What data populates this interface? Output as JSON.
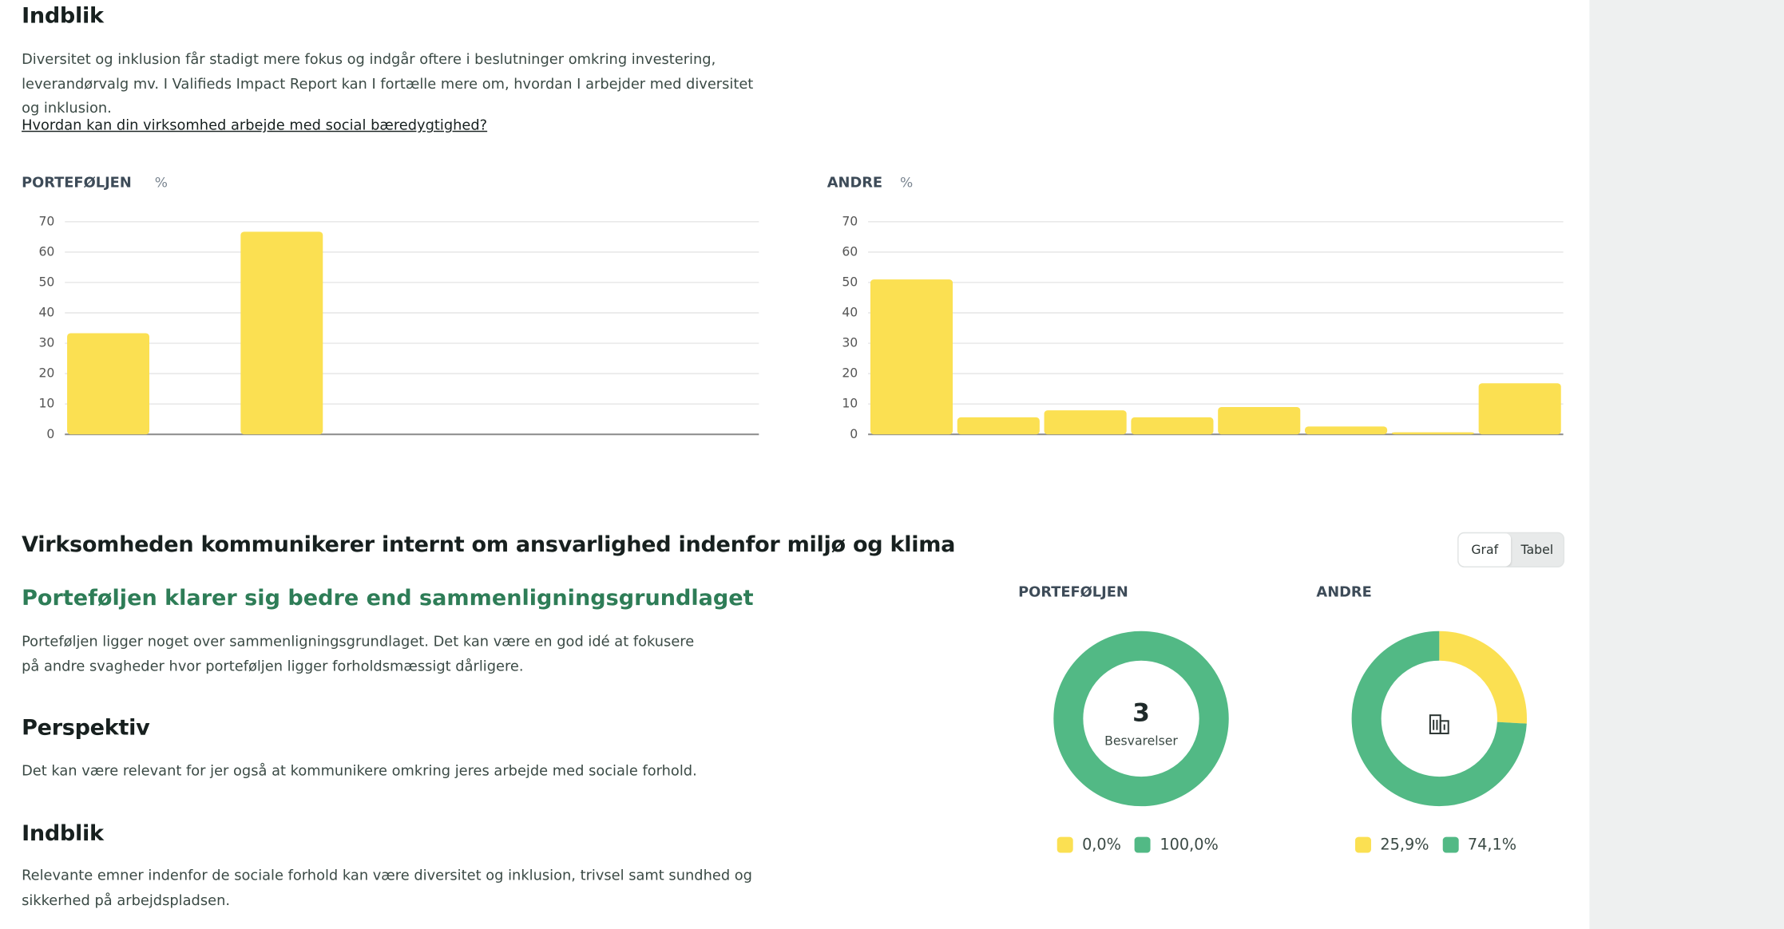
{
  "header": {
    "title": "Indblik",
    "text": "Diversitet og inklusion får stadigt mere fokus og indgår oftere i beslutninger omkring investering, leverandørvalg mv. I Valifieds Impact Report kan I fortælle mere om, hvordan I arbejder med diversitet og inklusion.",
    "link": "Hvordan kan din virksomhed arbejde med social bæredygtighed?"
  },
  "chart_data": [
    {
      "type": "bar",
      "title": "PORTEFØLJEN",
      "unit": "%",
      "categories": [
        null,
        null,
        null,
        null,
        null,
        null,
        null,
        null
      ],
      "values": [
        33.3,
        0,
        66.7,
        0,
        0,
        0,
        0,
        0
      ],
      "color": "#fbe052",
      "ylim": [
        0,
        70
      ],
      "yticks": [
        0,
        10,
        20,
        30,
        40,
        50,
        60,
        70
      ],
      "grid": true
    },
    {
      "type": "bar",
      "title": "ANDRE",
      "unit": "%",
      "categories": [
        null,
        null,
        null,
        null,
        null,
        null,
        null,
        null
      ],
      "values": [
        51,
        5.6,
        7.9,
        5.6,
        9,
        2.6,
        0.7,
        16.8
      ],
      "color": "#fbe052",
      "ylim": [
        0,
        70
      ],
      "yticks": [
        0,
        10,
        20,
        30,
        40,
        50,
        60,
        70
      ],
      "grid": true
    },
    {
      "type": "donut",
      "title": "PORTEFØLJEN",
      "values": [
        0,
        100
      ],
      "value_labels": [
        "0,0%",
        "100,0%"
      ],
      "colors": [
        "#fbe052",
        "#52b985"
      ],
      "center_value": 3,
      "center_label": "Besvarelser"
    },
    {
      "type": "donut",
      "title": "ANDRE",
      "values": [
        25.9,
        74.1
      ],
      "value_labels": [
        "25,9%",
        "74,1%"
      ],
      "colors": [
        "#fbe052",
        "#52b985"
      ]
    }
  ],
  "section": {
    "title": "Virksomheden kommunikerer internt om ansvarlighed indenfor miljø og klima",
    "subtitle": "Porteføljen klarer sig bedre end sammenligningsgrundlaget",
    "text": "Porteføljen ligger noget over sammenligningsgrundlaget. Det kan være en god idé at fokusere på andre svagheder hvor porteføljen ligger forholdsmæssigt dårligere.",
    "perspective_title": "Perspektiv",
    "perspective_text": "Det kan være relevant for jer også at kommunikere omkring jeres arbejde med sociale forhold.",
    "insight_title": "Indblik",
    "insight_text": "Relevante emner indenfor de sociale forhold kan være diversitet og inklusion, trivsel samt sundhed og sikkerhed på arbejdspladsen."
  },
  "toggle": {
    "options": [
      "Graf",
      "Tabel"
    ]
  }
}
